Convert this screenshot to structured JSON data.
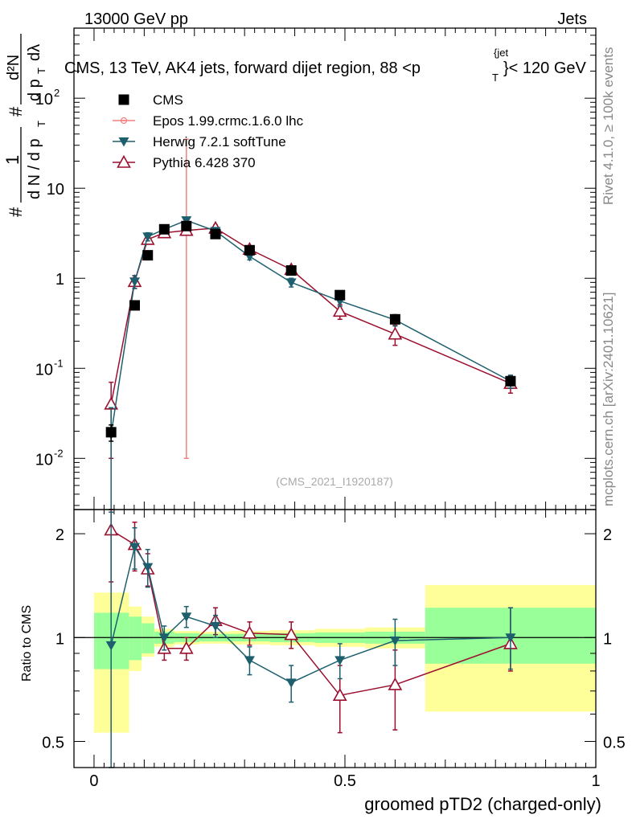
{
  "header": {
    "left": "13000 GeV pp",
    "right": "Jets"
  },
  "side_labels": {
    "top": "Rivet 4.1.0, ≥ 100k events",
    "bottom": "mcplots.cern.ch [arXiv:2401.10621]"
  },
  "colors": {
    "cms": "#000000",
    "epos": "#f08080",
    "herwig": "#1e5f6e",
    "pythia": "#9b0f2f",
    "band_inner": "#99ff99",
    "band_outer": "#ffff99"
  },
  "chart_data": [
    {
      "type": "line",
      "scale": "log",
      "title": "CMS, 13 TeV, AK4 jets, forward dijet region, 88 < p_T^{jet} < 120 GeV",
      "title_parts": {
        "main": "CMS, 13 TeV, AK4 jets, forward dijet region, 88 <p",
        "sub": "T",
        "sup": "{jet",
        "rest": "}< 120 GeV"
      },
      "ylabel": "1/(dN/dpT) d²N/(dpT dλ)",
      "ylabel_parts": {
        "num1": "1",
        "den1": "d N / d p",
        "num2": "d²N",
        "den2": "d p",
        "den2b": "dλ",
        "sub": "T",
        "hash": "#"
      },
      "xlim": [
        -0.04,
        1.0
      ],
      "ylim": [
        0.0027,
        600
      ],
      "yticks": [
        {
          "value": 0.01,
          "base": "10",
          "exp": "-2"
        },
        {
          "value": 0.1,
          "base": "10",
          "exp": "-1"
        },
        {
          "value": 1,
          "label": "1"
        },
        {
          "value": 10,
          "label": "10"
        },
        {
          "value": 100,
          "base": "10",
          "exp": "2"
        }
      ],
      "watermark": "(CMS_2021_I1920187)",
      "legend": [
        {
          "key": "cms",
          "label": "CMS"
        },
        {
          "key": "epos",
          "label": "Epos 1.99.crmc.1.6.0 lhc"
        },
        {
          "key": "herwig",
          "label": "Herwig 7.2.1 softTune"
        },
        {
          "key": "pythia",
          "label": "Pythia 6.428 370"
        }
      ],
      "series": [
        {
          "key": "cms",
          "name": "CMS",
          "style": "square",
          "x": [
            0.034,
            0.081,
            0.107,
            0.14,
            0.184,
            0.242,
            0.31,
            0.393,
            0.49,
            0.6,
            0.83
          ],
          "y": [
            0.0195,
            0.5,
            1.8,
            3.5,
            3.8,
            3.1,
            2.05,
            1.22,
            0.65,
            0.35,
            0.072
          ],
          "err": [
            0.004,
            0.04,
            0.1,
            0.2,
            0.2,
            0.18,
            0.12,
            0.08,
            0.05,
            0.03,
            0.008
          ]
        },
        {
          "key": "epos",
          "name": "Epos 1.99.crmc.1.6.0 lhc",
          "style": "cross",
          "x": [
            0.184
          ],
          "y": [
            4.0
          ],
          "err_low": [
            3.99
          ],
          "err_high": [
            31.0
          ]
        },
        {
          "key": "herwig",
          "name": "Herwig 7.2.1 softTune",
          "style": "triangle-down",
          "x": [
            0.034,
            0.081,
            0.107,
            0.14,
            0.184,
            0.242,
            0.31,
            0.393,
            0.49,
            0.6,
            0.83
          ],
          "y": [
            0.0185,
            0.92,
            2.9,
            3.5,
            4.4,
            3.35,
            1.75,
            0.9,
            0.56,
            0.345,
            0.072
          ],
          "err": [
            0.018,
            0.15,
            0.3,
            0.3,
            0.35,
            0.3,
            0.15,
            0.1,
            0.07,
            0.05,
            0.012
          ]
        },
        {
          "key": "pythia",
          "name": "Pythia 6.428 370",
          "style": "triangle-up",
          "x": [
            0.034,
            0.081,
            0.107,
            0.14,
            0.184,
            0.242,
            0.31,
            0.393,
            0.49,
            0.6,
            0.83
          ],
          "y": [
            0.04,
            0.92,
            2.7,
            3.2,
            3.4,
            3.6,
            2.1,
            1.25,
            0.43,
            0.24,
            0.068
          ],
          "err": [
            0.03,
            0.15,
            0.3,
            0.3,
            0.3,
            0.3,
            0.15,
            0.12,
            0.08,
            0.06,
            0.015
          ]
        }
      ]
    },
    {
      "type": "line",
      "scale": "log",
      "ylabel": "Ratio to CMS",
      "xlabel": "groomed pTD2 (charged-only)",
      "xlim": [
        -0.04,
        1.0
      ],
      "ylim": [
        0.42,
        2.35
      ],
      "xticks": [
        {
          "value": 0,
          "label": "0"
        },
        {
          "value": 0.5,
          "label": "0.5"
        },
        {
          "value": 1,
          "label": "1"
        }
      ],
      "yticks": [
        {
          "value": 0.5,
          "label": "0.5"
        },
        {
          "value": 1,
          "label": "1"
        },
        {
          "value": 2,
          "label": "2"
        }
      ],
      "bands": {
        "edges": [
          0,
          0.07,
          0.095,
          0.12,
          0.16,
          0.21,
          0.27,
          0.35,
          0.44,
          0.54,
          0.66,
          1.0
        ],
        "inner_low": [
          0.81,
          0.86,
          0.9,
          0.96,
          0.97,
          0.975,
          0.975,
          0.97,
          0.965,
          0.96,
          0.84
        ],
        "inner_high": [
          1.18,
          1.15,
          1.1,
          1.04,
          1.03,
          1.025,
          1.025,
          1.03,
          1.035,
          1.04,
          1.22
        ],
        "outer_low": [
          0.53,
          0.8,
          0.88,
          0.94,
          0.955,
          0.96,
          0.955,
          0.95,
          0.94,
          0.93,
          0.61
        ],
        "outer_high": [
          1.35,
          1.23,
          1.15,
          1.06,
          1.045,
          1.04,
          1.045,
          1.05,
          1.06,
          1.07,
          1.42
        ]
      },
      "series": [
        {
          "key": "herwig",
          "style": "triangle-down",
          "x": [
            0.034,
            0.081,
            0.107,
            0.14,
            0.184,
            0.242,
            0.31,
            0.393,
            0.49,
            0.6,
            0.83
          ],
          "y": [
            0.95,
            1.83,
            1.6,
            1.0,
            1.15,
            1.08,
            0.86,
            0.74,
            0.86,
            0.98,
            1.0
          ],
          "err_low": [
            0.55,
            0.25,
            0.2,
            0.08,
            0.08,
            0.08,
            0.08,
            0.09,
            0.1,
            0.15,
            0.19
          ],
          "err_high": [
            1.36,
            0.25,
            0.2,
            0.08,
            0.08,
            0.08,
            0.08,
            0.09,
            0.1,
            0.15,
            0.22
          ]
        },
        {
          "key": "pythia",
          "style": "triangle-up",
          "x": [
            0.034,
            0.081,
            0.107,
            0.14,
            0.184,
            0.242,
            0.31,
            0.393,
            0.49,
            0.6,
            0.83
          ],
          "y": [
            2.05,
            1.86,
            1.58,
            0.93,
            0.93,
            1.12,
            1.03,
            1.02,
            0.68,
            0.73,
            0.96
          ],
          "err_low": [
            0.6,
            0.3,
            0.17,
            0.07,
            0.07,
            0.1,
            0.08,
            0.09,
            0.15,
            0.19,
            0.16
          ],
          "err_high": [
            0.6,
            0.3,
            0.17,
            0.07,
            0.07,
            0.1,
            0.08,
            0.09,
            0.15,
            0.19,
            0.26
          ]
        }
      ]
    }
  ]
}
